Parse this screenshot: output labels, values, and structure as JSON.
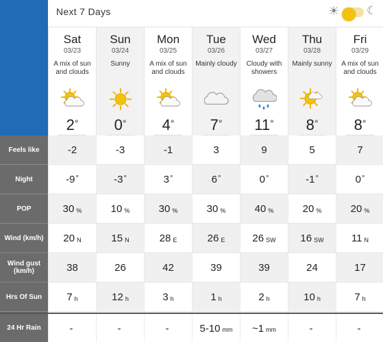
{
  "header": {
    "title": "Next 7 Days"
  },
  "toggle": {
    "sun_glyph": "☀",
    "moon_glyph": "☾"
  },
  "row_labels": {
    "feels_like": "Feels like",
    "night": "Night",
    "pop": "POP",
    "wind": "Wind (km/h)",
    "wind_gust": "Wind gust (km/h)",
    "hrs_sun": "Hrs Of Sun",
    "rain": "24 Hr Rain"
  },
  "days": [
    {
      "name": "Sat",
      "date": "03/23",
      "desc": "A mix of sun and clouds",
      "icon": "sun-cloud-icon",
      "temp": "2",
      "feels": "-2",
      "night": "-9",
      "pop": "30",
      "pop_unit": "%",
      "wind": "20",
      "wind_dir": "N",
      "gust": "38",
      "sun": "7",
      "sun_unit": "h",
      "rain": "-",
      "rain_unit": ""
    },
    {
      "name": "Sun",
      "date": "03/24",
      "desc": "Sunny",
      "icon": "sun-icon",
      "temp": "0",
      "feels": "-3",
      "night": "-3",
      "pop": "10",
      "pop_unit": "%",
      "wind": "15",
      "wind_dir": "N",
      "gust": "26",
      "sun": "12",
      "sun_unit": "h",
      "rain": "-",
      "rain_unit": ""
    },
    {
      "name": "Mon",
      "date": "03/25",
      "desc": "A mix of sun and clouds",
      "icon": "sun-cloud-icon",
      "temp": "4",
      "feels": "-1",
      "night": "3",
      "pop": "30",
      "pop_unit": "%",
      "wind": "28",
      "wind_dir": "E",
      "gust": "42",
      "sun": "3",
      "sun_unit": "h",
      "rain": "-",
      "rain_unit": ""
    },
    {
      "name": "Tue",
      "date": "03/26",
      "desc": "Mainly cloudy",
      "icon": "cloud-icon",
      "temp": "7",
      "feels": "3",
      "night": "6",
      "pop": "30",
      "pop_unit": "%",
      "wind": "26",
      "wind_dir": "E",
      "gust": "39",
      "sun": "1",
      "sun_unit": "h",
      "rain": "5-10",
      "rain_unit": "mm"
    },
    {
      "name": "Wed",
      "date": "03/27",
      "desc": "Cloudy with showers",
      "icon": "rain-cloud-icon",
      "temp": "11",
      "feels": "9",
      "night": "0",
      "pop": "40",
      "pop_unit": "%",
      "wind": "26",
      "wind_dir": "SW",
      "gust": "39",
      "sun": "2",
      "sun_unit": "h",
      "rain": "~1",
      "rain_unit": "mm"
    },
    {
      "name": "Thu",
      "date": "03/28",
      "desc": "Mainly sunny",
      "icon": "sun-small-cloud-icon",
      "temp": "8",
      "feels": "5",
      "night": "-1",
      "pop": "20",
      "pop_unit": "%",
      "wind": "16",
      "wind_dir": "SW",
      "gust": "24",
      "sun": "10",
      "sun_unit": "h",
      "rain": "-",
      "rain_unit": ""
    },
    {
      "name": "Fri",
      "date": "03/29",
      "desc": "A mix of sun and clouds",
      "icon": "sun-cloud-icon",
      "temp": "8",
      "feels": "7",
      "night": "0",
      "pop": "20",
      "pop_unit": "%",
      "wind": "11",
      "wind_dir": "N",
      "gust": "17",
      "sun": "7",
      "sun_unit": "h",
      "rain": "-",
      "rain_unit": ""
    }
  ],
  "colors": {
    "accent_blue": "#1f6bb6",
    "label_gray": "#6b6b6b",
    "sun_yellow": "#f4c20d",
    "toggle_track": "#f6e3a0"
  }
}
